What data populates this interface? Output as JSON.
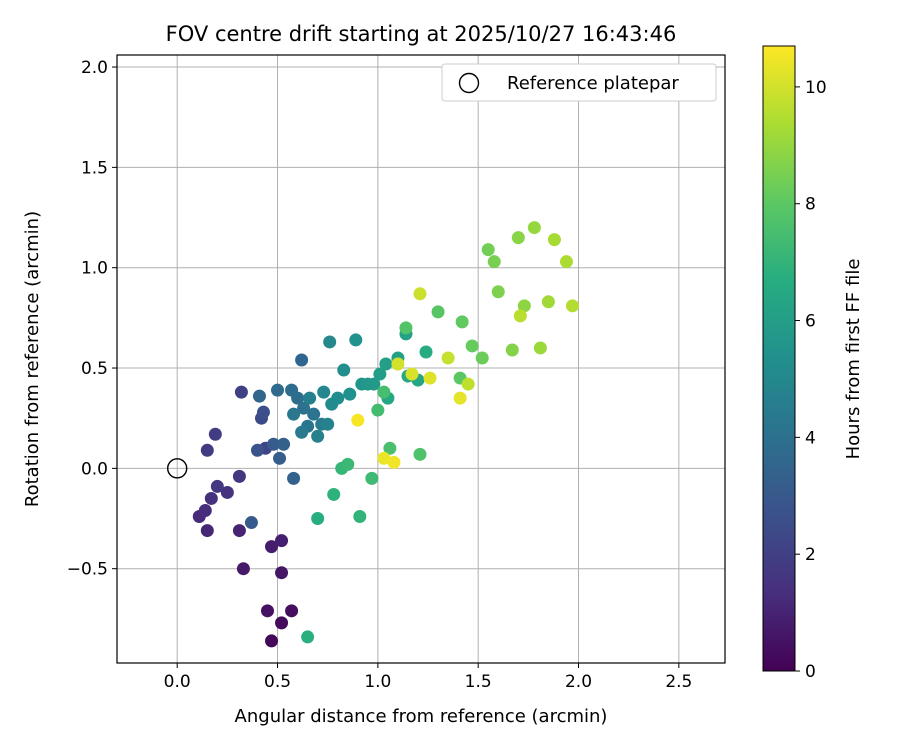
{
  "chart_data": {
    "type": "scatter",
    "title": "FOV centre drift starting at 2025/10/27 16:43:46",
    "xlabel": "Angular distance from reference (arcmin)",
    "ylabel": "Rotation from reference (arcmin)",
    "xlim": [
      -0.3,
      2.73
    ],
    "ylim": [
      -0.97,
      2.06
    ],
    "xticks": [
      "0.0",
      "0.5",
      "1.0",
      "1.5",
      "2.0",
      "2.5"
    ],
    "xtick_values": [
      0,
      0.5,
      1.0,
      1.5,
      2.0,
      2.5
    ],
    "yticks": [
      "−0.5",
      "0.0",
      "0.5",
      "1.0",
      "1.5",
      "2.0"
    ],
    "ytick_values": [
      -0.5,
      0,
      0.5,
      1.0,
      1.5,
      2.0
    ],
    "grid": true,
    "legend": {
      "label": "Reference platepar",
      "position": "top-right"
    },
    "reference_point": {
      "x": 0.0,
      "y": 0.0
    },
    "colorbar": {
      "label": "Hours from first FF file",
      "range": [
        0,
        10.7
      ],
      "ticks": [
        "0",
        "2",
        "4",
        "6",
        "8",
        "10"
      ],
      "tick_values": [
        0,
        2,
        4,
        6,
        8,
        10
      ],
      "colormap": "viridis"
    },
    "points": [
      [
        0.47,
        -0.86,
        0.2
      ],
      [
        0.52,
        -0.77,
        0.3
      ],
      [
        0.57,
        -0.71,
        0.4
      ],
      [
        0.45,
        -0.71,
        0.5
      ],
      [
        0.52,
        -0.52,
        0.6
      ],
      [
        0.33,
        -0.5,
        0.7
      ],
      [
        0.47,
        -0.39,
        0.8
      ],
      [
        0.52,
        -0.36,
        0.9
      ],
      [
        0.31,
        -0.31,
        1.0
      ],
      [
        0.15,
        -0.31,
        1.1
      ],
      [
        0.11,
        -0.24,
        1.2
      ],
      [
        0.14,
        -0.21,
        1.3
      ],
      [
        0.17,
        -0.15,
        1.4
      ],
      [
        0.25,
        -0.12,
        1.5
      ],
      [
        0.31,
        -0.04,
        1.6
      ],
      [
        0.2,
        -0.09,
        1.7
      ],
      [
        0.15,
        0.09,
        1.8
      ],
      [
        0.19,
        0.17,
        1.9
      ],
      [
        0.32,
        0.38,
        2.0
      ],
      [
        0.44,
        0.1,
        2.2
      ],
      [
        0.42,
        0.25,
        2.4
      ],
      [
        0.43,
        0.28,
        2.6
      ],
      [
        0.4,
        0.09,
        2.8
      ],
      [
        0.37,
        -0.27,
        3.0
      ],
      [
        0.48,
        0.12,
        3.1
      ],
      [
        0.51,
        0.05,
        3.2
      ],
      [
        0.53,
        0.12,
        3.3
      ],
      [
        0.58,
        -0.05,
        3.4
      ],
      [
        0.62,
        0.54,
        3.5
      ],
      [
        0.41,
        0.36,
        3.6
      ],
      [
        0.5,
        0.39,
        3.7
      ],
      [
        0.57,
        0.39,
        3.8
      ],
      [
        0.6,
        0.35,
        3.9
      ],
      [
        0.63,
        0.3,
        4.0
      ],
      [
        0.68,
        0.27,
        4.1
      ],
      [
        0.65,
        0.21,
        4.2
      ],
      [
        0.58,
        0.27,
        4.3
      ],
      [
        0.62,
        0.18,
        4.4
      ],
      [
        0.72,
        0.22,
        4.5
      ],
      [
        0.66,
        0.35,
        4.6
      ],
      [
        0.7,
        0.16,
        4.7
      ],
      [
        0.75,
        0.22,
        4.8
      ],
      [
        0.73,
        0.38,
        4.9
      ],
      [
        0.76,
        0.63,
        5.0
      ],
      [
        0.77,
        0.32,
        5.1
      ],
      [
        0.8,
        0.35,
        5.2
      ],
      [
        0.83,
        0.49,
        5.3
      ],
      [
        0.86,
        0.37,
        5.4
      ],
      [
        0.89,
        0.64,
        5.5
      ],
      [
        0.92,
        0.42,
        5.6
      ],
      [
        0.95,
        0.42,
        5.7
      ],
      [
        0.98,
        0.42,
        5.8
      ],
      [
        1.01,
        0.47,
        5.9
      ],
      [
        1.04,
        0.52,
        6.0
      ],
      [
        1.1,
        0.55,
        6.1
      ],
      [
        1.14,
        0.67,
        6.2
      ],
      [
        1.2,
        0.44,
        6.3
      ],
      [
        1.05,
        0.35,
        6.4
      ],
      [
        1.15,
        0.46,
        6.5
      ],
      [
        1.24,
        0.58,
        6.6
      ],
      [
        0.7,
        -0.25,
        6.7
      ],
      [
        0.65,
        -0.84,
        6.8
      ],
      [
        0.78,
        -0.13,
        6.9
      ],
      [
        0.91,
        -0.24,
        7.0
      ],
      [
        0.82,
        0.0,
        7.1
      ],
      [
        0.85,
        0.02,
        7.2
      ],
      [
        0.97,
        -0.05,
        7.3
      ],
      [
        1.0,
        0.29,
        7.4
      ],
      [
        1.03,
        0.38,
        7.5
      ],
      [
        1.06,
        0.1,
        7.6
      ],
      [
        1.21,
        0.07,
        7.7
      ],
      [
        1.14,
        0.7,
        7.8
      ],
      [
        1.3,
        0.78,
        7.9
      ],
      [
        1.41,
        0.45,
        8.0
      ],
      [
        1.42,
        0.73,
        8.1
      ],
      [
        1.47,
        0.61,
        8.2
      ],
      [
        1.52,
        0.55,
        8.3
      ],
      [
        1.55,
        1.09,
        8.4
      ],
      [
        1.58,
        1.03,
        8.5
      ],
      [
        1.6,
        0.88,
        8.6
      ],
      [
        1.67,
        0.59,
        8.7
      ],
      [
        1.7,
        1.15,
        8.8
      ],
      [
        1.73,
        0.81,
        8.9
      ],
      [
        1.78,
        1.2,
        9.0
      ],
      [
        1.81,
        0.6,
        9.1
      ],
      [
        1.85,
        0.83,
        9.2
      ],
      [
        1.88,
        1.14,
        9.3
      ],
      [
        1.94,
        1.03,
        9.4
      ],
      [
        1.97,
        0.81,
        9.5
      ],
      [
        1.71,
        0.76,
        9.6
      ],
      [
        1.45,
        0.42,
        9.7
      ],
      [
        1.35,
        0.55,
        9.8
      ],
      [
        1.21,
        0.87,
        9.9
      ],
      [
        1.1,
        0.52,
        10.0
      ],
      [
        1.17,
        0.47,
        10.1
      ],
      [
        1.26,
        0.45,
        10.2
      ],
      [
        1.41,
        0.35,
        10.3
      ],
      [
        1.03,
        0.05,
        10.4
      ],
      [
        1.08,
        0.03,
        10.5
      ],
      [
        0.9,
        0.24,
        10.6
      ]
    ]
  }
}
